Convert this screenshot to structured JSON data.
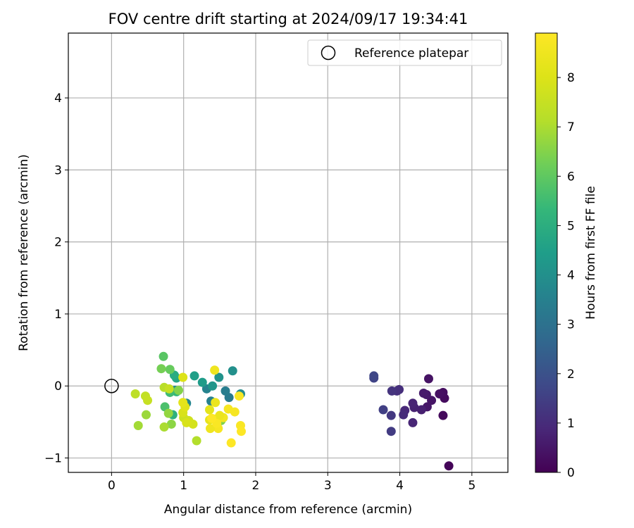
{
  "chart_data": {
    "type": "scatter",
    "title": "FOV centre drift starting at 2024/09/17 19:34:41",
    "xlabel": "Angular distance from reference (arcmin)",
    "ylabel": "Rotation from reference (arcmin)",
    "xlim": [
      -0.6,
      5.5
    ],
    "ylim": [
      -1.2,
      4.9
    ],
    "xticks": [
      0,
      1,
      2,
      3,
      4,
      5
    ],
    "yticks": [
      -1,
      0,
      1,
      2,
      3,
      4
    ],
    "xtick_labels": [
      "0",
      "1",
      "2",
      "3",
      "4",
      "5"
    ],
    "ytick_labels": [
      "−1",
      "0",
      "1",
      "2",
      "3",
      "4"
    ],
    "grid": true,
    "legend": {
      "placement": "top-right",
      "entries": [
        "Reference platepar"
      ]
    },
    "reference_point": {
      "x": 0,
      "y": 0,
      "marker": "open-circle",
      "label": "Reference platepar"
    },
    "colorbar": {
      "label": "Hours from first FF file",
      "colormap": "viridis",
      "range": [
        0,
        8.9
      ],
      "ticks": [
        0,
        1,
        2,
        3,
        4,
        5,
        6,
        7,
        8
      ],
      "tick_labels": [
        "0",
        "1",
        "2",
        "3",
        "4",
        "5",
        "6",
        "7",
        "8"
      ]
    },
    "points": [
      {
        "x": 4.68,
        "y": -1.11,
        "h": 0.1
      },
      {
        "x": 4.6,
        "y": -0.41,
        "h": 0.2
      },
      {
        "x": 4.62,
        "y": -0.17,
        "h": 0.25
      },
      {
        "x": 4.6,
        "y": -0.09,
        "h": 0.3
      },
      {
        "x": 4.55,
        "y": -0.11,
        "h": 0.35
      },
      {
        "x": 4.4,
        "y": 0.1,
        "h": 0.4
      },
      {
        "x": 4.44,
        "y": -0.2,
        "h": 0.45
      },
      {
        "x": 4.38,
        "y": -0.29,
        "h": 0.5
      },
      {
        "x": 4.37,
        "y": -0.12,
        "h": 0.55
      },
      {
        "x": 4.33,
        "y": -0.1,
        "h": 0.6
      },
      {
        "x": 4.3,
        "y": -0.33,
        "h": 0.7
      },
      {
        "x": 4.2,
        "y": -0.3,
        "h": 0.75
      },
      {
        "x": 4.18,
        "y": -0.24,
        "h": 0.8
      },
      {
        "x": 4.18,
        "y": -0.51,
        "h": 0.85
      },
      {
        "x": 4.07,
        "y": -0.34,
        "h": 0.9
      },
      {
        "x": 4.05,
        "y": -0.4,
        "h": 1.0
      },
      {
        "x": 3.99,
        "y": -0.05,
        "h": 1.05
      },
      {
        "x": 3.96,
        "y": -0.07,
        "h": 1.1
      },
      {
        "x": 3.89,
        "y": -0.07,
        "h": 1.2
      },
      {
        "x": 3.88,
        "y": -0.41,
        "h": 1.3
      },
      {
        "x": 3.88,
        "y": -0.63,
        "h": 1.4
      },
      {
        "x": 3.77,
        "y": -0.33,
        "h": 1.5
      },
      {
        "x": 3.64,
        "y": 0.11,
        "h": 1.6
      },
      {
        "x": 3.64,
        "y": 0.14,
        "h": 1.7
      },
      {
        "x": 1.63,
        "y": -0.16,
        "h": 3.3
      },
      {
        "x": 1.58,
        "y": -0.07,
        "h": 3.4
      },
      {
        "x": 1.38,
        "y": -0.21,
        "h": 3.5
      },
      {
        "x": 1.32,
        "y": -0.04,
        "h": 3.6
      },
      {
        "x": 1.04,
        "y": -0.24,
        "h": 3.7
      },
      {
        "x": 0.88,
        "y": -0.06,
        "h": 3.8
      },
      {
        "x": 1.79,
        "y": -0.11,
        "h": 3.9
      },
      {
        "x": 1.68,
        "y": 0.21,
        "h": 4.0
      },
      {
        "x": 1.49,
        "y": 0.12,
        "h": 4.1
      },
      {
        "x": 1.4,
        "y": 0.0,
        "h": 4.2
      },
      {
        "x": 1.26,
        "y": 0.05,
        "h": 4.4
      },
      {
        "x": 1.15,
        "y": 0.14,
        "h": 4.5
      },
      {
        "x": 0.9,
        "y": 0.11,
        "h": 4.7
      },
      {
        "x": 0.87,
        "y": 0.15,
        "h": 4.9
      },
      {
        "x": 0.85,
        "y": -0.4,
        "h": 5.1
      },
      {
        "x": 0.9,
        "y": -0.08,
        "h": 5.3
      },
      {
        "x": 0.81,
        "y": -0.09,
        "h": 5.5
      },
      {
        "x": 0.74,
        "y": -0.29,
        "h": 5.7
      },
      {
        "x": 0.72,
        "y": 0.41,
        "h": 5.9
      },
      {
        "x": 0.81,
        "y": 0.23,
        "h": 6.1
      },
      {
        "x": 0.69,
        "y": 0.24,
        "h": 6.3
      },
      {
        "x": 1.55,
        "y": -0.44,
        "h": 6.1
      },
      {
        "x": 1.52,
        "y": -0.48,
        "h": 6.4
      },
      {
        "x": 0.93,
        "y": -0.06,
        "h": 6.5
      },
      {
        "x": 0.83,
        "y": -0.53,
        "h": 6.6
      },
      {
        "x": 0.79,
        "y": -0.38,
        "h": 6.7
      },
      {
        "x": 0.48,
        "y": -0.4,
        "h": 6.8
      },
      {
        "x": 0.37,
        "y": -0.55,
        "h": 6.9
      },
      {
        "x": 0.73,
        "y": -0.57,
        "h": 7.0
      },
      {
        "x": 1.18,
        "y": -0.76,
        "h": 7.1
      },
      {
        "x": 0.73,
        "y": -0.02,
        "h": 7.2
      },
      {
        "x": 0.33,
        "y": -0.11,
        "h": 7.3
      },
      {
        "x": 0.47,
        "y": -0.14,
        "h": 7.4
      },
      {
        "x": 0.5,
        "y": -0.2,
        "h": 7.5
      },
      {
        "x": 0.8,
        "y": -0.04,
        "h": 7.5
      },
      {
        "x": 1.0,
        "y": -0.44,
        "h": 7.6
      },
      {
        "x": 1.07,
        "y": -0.48,
        "h": 7.7
      },
      {
        "x": 1.13,
        "y": -0.53,
        "h": 7.8
      },
      {
        "x": 1.04,
        "y": -0.51,
        "h": 7.9
      },
      {
        "x": 0.99,
        "y": -0.37,
        "h": 7.9
      },
      {
        "x": 0.99,
        "y": 0.12,
        "h": 8.0
      },
      {
        "x": 1.02,
        "y": -0.29,
        "h": 8.1
      },
      {
        "x": 0.99,
        "y": -0.23,
        "h": 8.2
      },
      {
        "x": 1.36,
        "y": -0.33,
        "h": 8.2
      },
      {
        "x": 1.36,
        "y": -0.47,
        "h": 8.3
      },
      {
        "x": 1.44,
        "y": -0.23,
        "h": 8.4
      },
      {
        "x": 1.43,
        "y": 0.22,
        "h": 8.5
      },
      {
        "x": 1.42,
        "y": -0.46,
        "h": 8.6
      },
      {
        "x": 1.55,
        "y": -0.44,
        "h": 8.6
      },
      {
        "x": 1.62,
        "y": -0.32,
        "h": 8.7
      },
      {
        "x": 1.71,
        "y": -0.36,
        "h": 8.7
      },
      {
        "x": 1.77,
        "y": -0.14,
        "h": 8.8
      },
      {
        "x": 1.79,
        "y": -0.55,
        "h": 8.8
      },
      {
        "x": 1.8,
        "y": -0.63,
        "h": 8.9
      },
      {
        "x": 1.66,
        "y": -0.79,
        "h": 8.9
      },
      {
        "x": 1.48,
        "y": -0.59,
        "h": 8.7
      },
      {
        "x": 1.37,
        "y": -0.59,
        "h": 8.5
      },
      {
        "x": 1.5,
        "y": -0.41,
        "h": 8.4
      },
      {
        "x": 1.46,
        "y": -0.52,
        "h": 8.8
      },
      {
        "x": 1.39,
        "y": -0.45,
        "h": 8.9
      }
    ]
  }
}
